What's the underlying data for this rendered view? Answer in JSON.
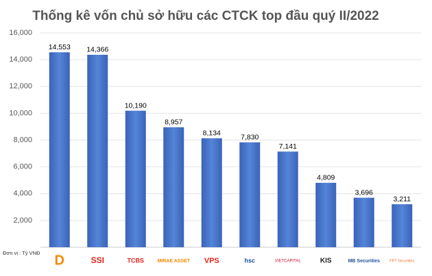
{
  "chart_data": {
    "type": "bar",
    "title": "Thống kê vốn chủ sở hữu các CTCK top đầu quý II/2022",
    "note": "Đơn vị : Tỷ VNĐ",
    "categories": [
      "D",
      "SSI",
      "TCBS",
      "MIRAE ASSET",
      "VPS",
      "hsc",
      "VIETCAPITAL",
      "KIS",
      "MB Securities",
      "FPT Securities"
    ],
    "values": [
      14553,
      14366,
      10190,
      8957,
      8134,
      7830,
      7141,
      4809,
      3696,
      3211
    ],
    "value_labels": [
      "14,553",
      "14,366",
      "10,190",
      "8,957",
      "8,134",
      "7,830",
      "7,141",
      "4,809",
      "3,696",
      "3,211"
    ],
    "color": "#4472c4",
    "ylim": [
      0,
      16000
    ],
    "yticks": [
      {
        "value": 2000,
        "label": "2,000"
      },
      {
        "value": 4000,
        "label": "4,000"
      },
      {
        "value": 6000,
        "label": "6,000"
      },
      {
        "value": 8000,
        "label": "8,000"
      },
      {
        "value": 10000,
        "label": "10,000"
      },
      {
        "value": 12000,
        "label": "12,000"
      },
      {
        "value": 14000,
        "label": "14,000"
      },
      {
        "value": 16000,
        "label": "16,000"
      }
    ],
    "grid": true
  }
}
